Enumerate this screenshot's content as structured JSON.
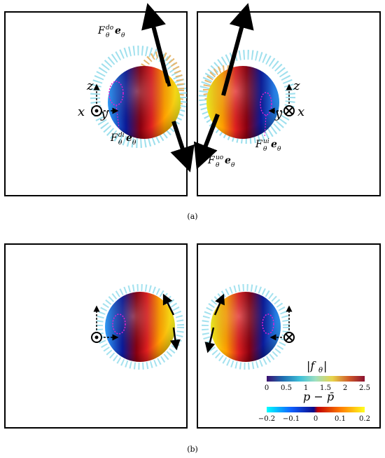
{
  "figure": {
    "caption_a": "(a)",
    "caption_b": "(b)"
  },
  "panel_a": {
    "labels": {
      "f_do": "F",
      "f_do_sup": "do",
      "f_di": "F",
      "f_di_sup": "di",
      "f_uo": "F",
      "f_uo_sup": "uo",
      "f_ui": "F",
      "f_ui_sup": "ui",
      "theta": "θ",
      "e_theta": "e",
      "axis_x": "x",
      "axis_y": "y",
      "axis_z": "z"
    }
  },
  "colorbar_f": {
    "title": "|f",
    "title_sub": "θ",
    "title_end": "|",
    "ticks": [
      "0",
      "0.5",
      "1",
      "1.5",
      "2",
      "2.5"
    ],
    "colors": [
      "#3b0f70",
      "#1f6fb2",
      "#3fc0d8",
      "#9fe0c0",
      "#e8d44a",
      "#d05a2a",
      "#8a1230"
    ]
  },
  "colorbar_p": {
    "title": "p − p̄",
    "ticks": [
      "−0.2",
      "−0.1",
      "0",
      "0.1",
      "0.2"
    ],
    "colors": [
      "#00ffff",
      "#1060ff",
      "#0a0a8a",
      "#c00000",
      "#ff7a00",
      "#ffff20"
    ]
  },
  "colors": {
    "marker_dashed": "#e020d0",
    "arrow": "#000000"
  }
}
